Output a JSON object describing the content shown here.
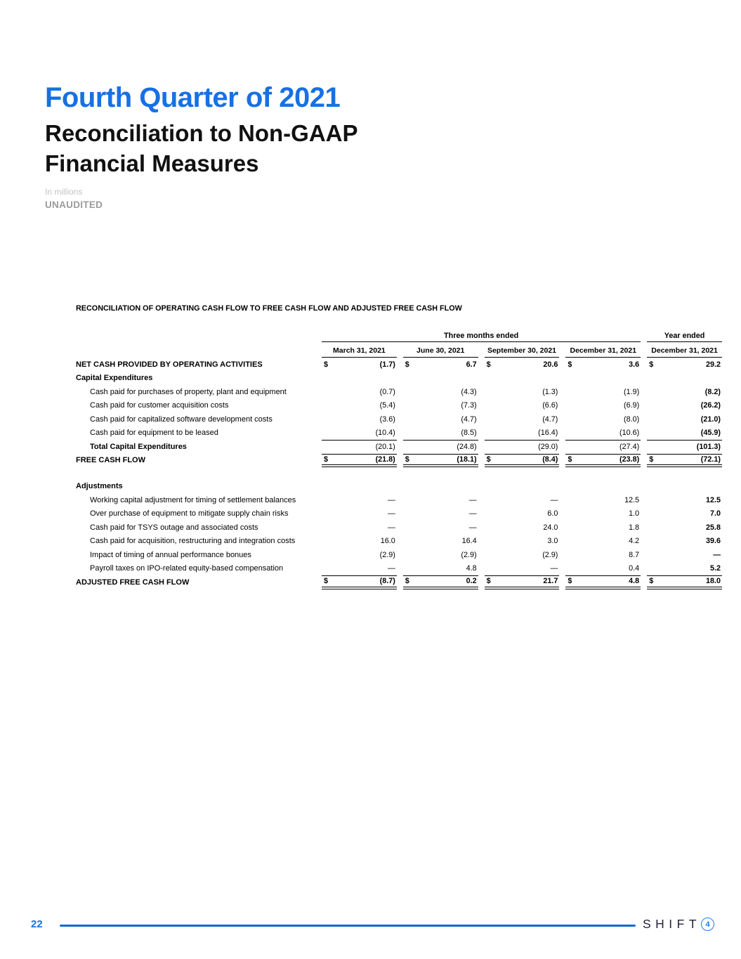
{
  "colors": {
    "accent_blue": "#1770e4",
    "footer_rule_blue": "#1566d9",
    "logo_circle_blue": "#2478f2",
    "muted_gray": "#9b9b9b",
    "light_gray": "#c2c2c2"
  },
  "header": {
    "title": "Fourth Quarter of 2021",
    "subtitle_line1": "Reconciliation to Non-GAAP",
    "subtitle_line2": "Financial Measures",
    "note": "In millions",
    "unaudited": "UNAUDITED"
  },
  "table": {
    "title": "RECONCILIATION OF OPERATING CASH FLOW TO FREE CASH FLOW AND ADJUSTED FREE CASH FLOW",
    "currency_symbol": "$",
    "group_headers": [
      {
        "label": "Three months ended",
        "span": 4
      },
      {
        "label": "Year ended",
        "span": 1
      }
    ],
    "columns": [
      "March 31, 2021",
      "June 30, 2021",
      "September 30, 2021",
      "December 31, 2021",
      "December 31, 2021"
    ],
    "rows": [
      {
        "label": "NET CASH PROVIDED BY OPERATING ACTIVITIES",
        "indent": 0,
        "bold": true,
        "dollar": true,
        "bold_values": true,
        "values": [
          "(1.7)",
          "6.7",
          "20.6",
          "3.6",
          "29.2"
        ]
      },
      {
        "label": "Capital Expenditures",
        "indent": 0,
        "bold": true,
        "values": [
          "",
          "",
          "",
          "",
          ""
        ]
      },
      {
        "label": "Cash paid for purchases of property, plant and equipment",
        "indent": 1,
        "values": [
          "(0.7)",
          "(4.3)",
          "(1.3)",
          "(1.9)",
          "(8.2)"
        ]
      },
      {
        "label": "Cash paid for customer acquisition costs",
        "indent": 1,
        "values": [
          "(5.4)",
          "(7.3)",
          "(6.6)",
          "(6.9)",
          "(26.2)"
        ]
      },
      {
        "label": "Cash paid for capitalized software development costs",
        "indent": 1,
        "values": [
          "(3.6)",
          "(4.7)",
          "(4.7)",
          "(8.0)",
          "(21.0)"
        ]
      },
      {
        "label": "Cash paid for equipment to be leased",
        "indent": 1,
        "values": [
          "(10.4)",
          "(8.5)",
          "(16.4)",
          "(10.6)",
          "(45.9)"
        ]
      },
      {
        "label": "Total Capital Expenditures",
        "indent": 1,
        "bold": true,
        "border_top": true,
        "values": [
          "(20.1)",
          "(24.8)",
          "(29.0)",
          "(27.4)",
          "(101.3)"
        ]
      },
      {
        "label": "FREE CASH FLOW",
        "indent": 0,
        "bold": true,
        "dollar": true,
        "bold_values": true,
        "border_top": true,
        "border_bottom": "double",
        "values": [
          "(21.8)",
          "(18.1)",
          "(8.4)",
          "(23.8)",
          "(72.1)"
        ]
      },
      {
        "spacer": true
      },
      {
        "label": "Adjustments",
        "indent": 0,
        "bold": true,
        "values": [
          "",
          "",
          "",
          "",
          ""
        ]
      },
      {
        "label": "Working capital adjustment for timing of settlement balances",
        "indent": 1,
        "values": [
          "—",
          "—",
          "—",
          "12.5",
          "12.5"
        ]
      },
      {
        "label": "Over purchase of equipment to mitigate supply chain risks",
        "indent": 1,
        "values": [
          "—",
          "—",
          "6.0",
          "1.0",
          "7.0"
        ]
      },
      {
        "label": "Cash paid for TSYS outage and associated costs",
        "indent": 1,
        "values": [
          "—",
          "—",
          "24.0",
          "1.8",
          "25.8"
        ]
      },
      {
        "label": "Cash paid for acquisition, restructuring and integration costs",
        "indent": 1,
        "values": [
          "16.0",
          "16.4",
          "3.0",
          "4.2",
          "39.6"
        ]
      },
      {
        "label": "Impact of timing of annual performance bonues",
        "indent": 1,
        "values": [
          "(2.9)",
          "(2.9)",
          "(2.9)",
          "8.7",
          "—"
        ]
      },
      {
        "label": "Payroll taxes on IPO-related equity-based compensation",
        "indent": 1,
        "values": [
          "—",
          "4.8",
          "—",
          "0.4",
          "5.2"
        ]
      },
      {
        "label": "ADJUSTED FREE CASH FLOW",
        "indent": 0,
        "bold": true,
        "dollar": true,
        "bold_values": true,
        "border_top": true,
        "border_bottom": "double",
        "values": [
          "(8.7)",
          "0.2",
          "21.7",
          "4.8",
          "18.0"
        ]
      }
    ]
  },
  "footer": {
    "page_number": "22",
    "logo_text": "SHIFT",
    "logo_mark": "4"
  }
}
